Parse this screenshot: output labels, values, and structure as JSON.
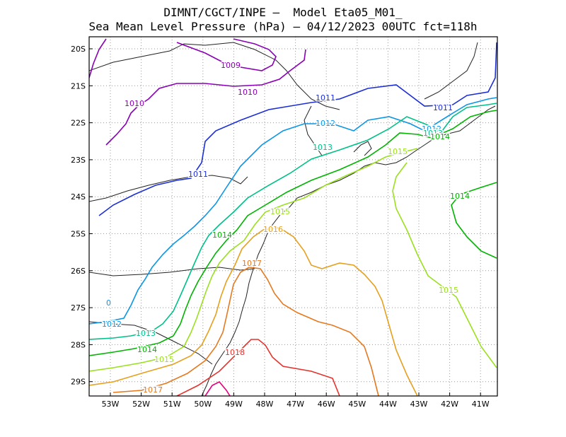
{
  "title": {
    "line1": "DIMNT/CGCT/INPE –  Model Eta05_M01_",
    "line2": "Sea Mean Level Pressure (hPa) – 04/12/2023 00UTC fct=118h"
  },
  "map": {
    "lon_ticks": [
      "53W",
      "52W",
      "51W",
      "50W",
      "49W",
      "48W",
      "47W",
      "46W",
      "45W",
      "44W",
      "43W",
      "42W",
      "41W"
    ],
    "lat_ticks": [
      "20S",
      "21S",
      "22S",
      "23S",
      "24S",
      "25S",
      "26S",
      "27S",
      "28S",
      "29S"
    ],
    "contour_labels": [
      {
        "id": "c1009",
        "text": "1009",
        "color": "#8a00b4"
      },
      {
        "id": "c1010a",
        "text": "1010",
        "color": "#8a00b4"
      },
      {
        "id": "c1010b",
        "text": "1010",
        "color": "#8a00b4"
      },
      {
        "id": "c1011a",
        "text": "1011",
        "color": "#1c2fd6"
      },
      {
        "id": "c1011b",
        "text": "1011",
        "color": "#1c2fd6"
      },
      {
        "id": "c1011c",
        "text": "1011",
        "color": "#1c2fd6"
      },
      {
        "id": "c1012a",
        "text": "1012",
        "color": "#0a96e6"
      },
      {
        "id": "c1012b",
        "text": "1012",
        "color": "#0a96e6"
      },
      {
        "id": "c1012c",
        "text": "1012",
        "color": "#0a96e6"
      },
      {
        "id": "c1012d",
        "text": "0",
        "color": "#0a96e6"
      },
      {
        "id": "c1013a",
        "text": "1013",
        "color": "#00c08a"
      },
      {
        "id": "c1013b",
        "text": "1013",
        "color": "#00c08a"
      },
      {
        "id": "c1013c",
        "text": "1013",
        "color": "#00c08a"
      },
      {
        "id": "c1014a",
        "text": "1014",
        "color": "#00b400"
      },
      {
        "id": "c1014b",
        "text": "1014",
        "color": "#00b400"
      },
      {
        "id": "c1014c",
        "text": "1014",
        "color": "#00b400"
      },
      {
        "id": "c1014d",
        "text": "1014",
        "color": "#00b400"
      },
      {
        "id": "c1015a",
        "text": "1015",
        "color": "#9be01e"
      },
      {
        "id": "c1015b",
        "text": "1015",
        "color": "#9be01e"
      },
      {
        "id": "c1015c",
        "text": "1015",
        "color": "#9be01e"
      },
      {
        "id": "c1015d",
        "text": "1015",
        "color": "#9be01e"
      },
      {
        "id": "c1016",
        "text": "1016",
        "color": "#e6a01e"
      },
      {
        "id": "c1017a",
        "text": "1017",
        "color": "#e6781e"
      },
      {
        "id": "c1017b",
        "text": "1017",
        "color": "#e6781e"
      },
      {
        "id": "c1018",
        "text": "1018",
        "color": "#e6322d"
      }
    ]
  }
}
